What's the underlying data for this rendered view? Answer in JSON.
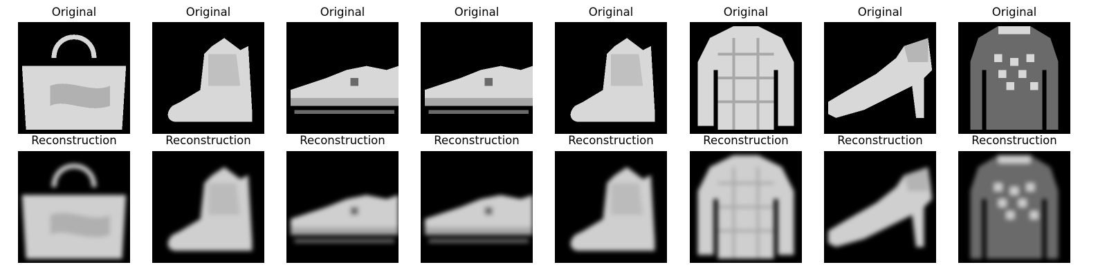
{
  "figure": {
    "rows": [
      {
        "panel_title": "Original",
        "images": [
          {
            "subject": "handbag",
            "variant": "original"
          },
          {
            "subject": "ankle-boot",
            "variant": "original"
          },
          {
            "subject": "sneaker",
            "variant": "original"
          },
          {
            "subject": "sneaker",
            "variant": "original"
          },
          {
            "subject": "ankle-boot",
            "variant": "original"
          },
          {
            "subject": "shirt",
            "variant": "original"
          },
          {
            "subject": "high-heel-shoe",
            "variant": "original"
          },
          {
            "subject": "pullover",
            "variant": "original"
          }
        ]
      },
      {
        "panel_title": "Reconstruction",
        "images": [
          {
            "subject": "handbag",
            "variant": "reconstruction"
          },
          {
            "subject": "ankle-boot",
            "variant": "reconstruction"
          },
          {
            "subject": "sneaker",
            "variant": "reconstruction"
          },
          {
            "subject": "sneaker",
            "variant": "reconstruction"
          },
          {
            "subject": "ankle-boot",
            "variant": "reconstruction"
          },
          {
            "subject": "shirt",
            "variant": "reconstruction"
          },
          {
            "subject": "high-heel-shoe",
            "variant": "reconstruction"
          },
          {
            "subject": "pullover",
            "variant": "reconstruction"
          }
        ]
      }
    ],
    "colors": {
      "background": "#ffffff",
      "image_background": "#000000",
      "item_light": "#d8d8d8",
      "item_mid": "#a8a8a8",
      "item_dark": "#6a6a6a"
    }
  }
}
